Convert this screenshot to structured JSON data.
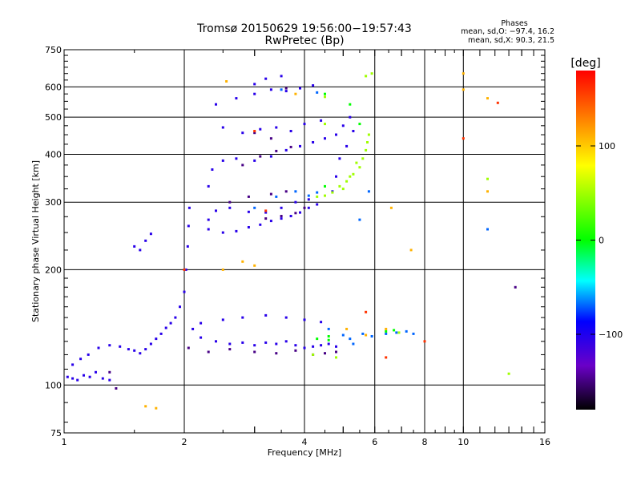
{
  "chart_data": {
    "type": "scatter",
    "title": "Tromsø 20150629 19:56:00−19:57:43",
    "subtitle": "RwPretec (Bp)",
    "xlabel": "Frequency [MHz]",
    "ylabel": "Stationary phase Virtual Height [km]",
    "x_scale": "log",
    "y_scale": "log",
    "xlim": [
      1,
      16
    ],
    "ylim": [
      75,
      750
    ],
    "x_ticks": [
      "1",
      "2",
      "4",
      "6",
      "8",
      "10",
      "16"
    ],
    "y_ticks": [
      "75",
      "100",
      "200",
      "300",
      "400",
      "500",
      "600",
      "750"
    ],
    "grid": true,
    "stats": {
      "header": "Phases",
      "line_o": "mean, sd,O: −97.4, 16.2",
      "line_x": "mean, sd,X:  90.3, 21.5"
    },
    "colorbar": {
      "label": "[deg]",
      "range": [
        -180,
        180
      ],
      "ticks": [
        "100",
        "0",
        "−100"
      ],
      "colors": [
        "#ff0000",
        "#ff7f00",
        "#ffff00",
        "#00ff00",
        "#00ffff",
        "#0000ff",
        "#6a00c8",
        "#000000"
      ]
    },
    "series": [
      {
        "phase": -110,
        "points": [
          [
            1.02,
            105
          ],
          [
            1.05,
            104
          ],
          [
            1.08,
            103
          ],
          [
            1.12,
            106
          ],
          [
            1.16,
            105
          ],
          [
            1.2,
            108
          ],
          [
            1.25,
            104
          ],
          [
            1.3,
            103
          ],
          [
            1.05,
            113
          ],
          [
            1.1,
            117
          ],
          [
            1.15,
            120
          ],
          [
            1.22,
            125
          ],
          [
            1.3,
            127
          ],
          [
            1.38,
            126
          ],
          [
            1.45,
            124
          ],
          [
            1.5,
            123
          ],
          [
            1.55,
            121
          ],
          [
            1.6,
            124
          ],
          [
            1.65,
            128
          ],
          [
            1.7,
            132
          ],
          [
            1.75,
            136
          ],
          [
            1.8,
            141
          ],
          [
            1.85,
            145
          ],
          [
            1.9,
            150
          ],
          [
            1.95,
            160
          ],
          [
            2.0,
            175
          ],
          [
            2.02,
            200
          ],
          [
            2.04,
            230
          ],
          [
            2.05,
            260
          ],
          [
            2.06,
            290
          ],
          [
            2.1,
            140
          ],
          [
            2.2,
            133
          ],
          [
            2.4,
            130
          ],
          [
            2.6,
            128
          ],
          [
            2.8,
            129
          ],
          [
            3.0,
            127
          ],
          [
            3.2,
            129
          ],
          [
            3.4,
            128
          ],
          [
            3.6,
            130
          ],
          [
            3.8,
            127
          ],
          [
            4.0,
            125
          ],
          [
            4.2,
            126
          ],
          [
            4.4,
            127
          ],
          [
            4.6,
            128
          ],
          [
            4.8,
            126
          ],
          [
            2.2,
            145
          ],
          [
            2.5,
            148
          ],
          [
            2.8,
            150
          ],
          [
            3.2,
            152
          ],
          [
            3.6,
            150
          ],
          [
            4.0,
            148
          ],
          [
            4.4,
            146
          ],
          [
            2.3,
            255
          ],
          [
            2.5,
            250
          ],
          [
            2.7,
            252
          ],
          [
            2.9,
            258
          ],
          [
            3.1,
            262
          ],
          [
            3.3,
            268
          ],
          [
            3.5,
            272
          ],
          [
            3.7,
            276
          ],
          [
            3.9,
            282
          ],
          [
            4.1,
            290
          ],
          [
            4.3,
            296
          ],
          [
            2.3,
            270
          ],
          [
            2.4,
            285
          ],
          [
            2.6,
            290
          ],
          [
            2.9,
            283
          ],
          [
            3.2,
            282
          ],
          [
            3.5,
            290
          ],
          [
            3.8,
            300
          ],
          [
            4.1,
            305
          ],
          [
            2.3,
            330
          ],
          [
            2.35,
            365
          ],
          [
            2.5,
            385
          ],
          [
            2.7,
            390
          ],
          [
            3.0,
            385
          ],
          [
            3.3,
            395
          ],
          [
            3.6,
            410
          ],
          [
            3.9,
            420
          ],
          [
            4.2,
            430
          ],
          [
            4.5,
            440
          ],
          [
            4.8,
            450
          ],
          [
            2.4,
            540
          ],
          [
            2.7,
            560
          ],
          [
            3.0,
            575
          ],
          [
            3.3,
            590
          ],
          [
            3.6,
            585
          ],
          [
            3.9,
            595
          ],
          [
            4.2,
            605
          ],
          [
            3.2,
            630
          ],
          [
            3.5,
            640
          ],
          [
            3.0,
            610
          ],
          [
            2.5,
            470
          ],
          [
            2.8,
            455
          ],
          [
            3.1,
            465
          ],
          [
            3.4,
            470
          ],
          [
            3.7,
            460
          ],
          [
            4.0,
            480
          ],
          [
            4.4,
            490
          ],
          [
            5.0,
            475
          ],
          [
            5.2,
            500
          ],
          [
            5.3,
            460
          ],
          [
            5.1,
            420
          ],
          [
            4.9,
            390
          ],
          [
            4.8,
            350
          ],
          [
            4.7,
            320
          ],
          [
            1.5,
            230
          ],
          [
            1.55,
            225
          ],
          [
            1.6,
            238
          ],
          [
            1.65,
            248
          ]
        ]
      },
      {
        "phase": -150,
        "points": [
          [
            2.05,
            125
          ],
          [
            2.3,
            122
          ],
          [
            2.6,
            124
          ],
          [
            3.0,
            122
          ],
          [
            3.4,
            121
          ],
          [
            3.8,
            123
          ],
          [
            3.2,
            272
          ],
          [
            3.5,
            276
          ],
          [
            3.8,
            281
          ],
          [
            4.0,
            290
          ],
          [
            3.1,
            395
          ],
          [
            3.4,
            408
          ],
          [
            3.7,
            418
          ],
          [
            2.6,
            300
          ],
          [
            2.9,
            310
          ],
          [
            3.3,
            315
          ],
          [
            3.6,
            320
          ],
          [
            3.0,
            455
          ],
          [
            3.3,
            440
          ],
          [
            4.2,
            120
          ],
          [
            4.5,
            121
          ],
          [
            4.8,
            122
          ],
          [
            1.3,
            108
          ],
          [
            1.35,
            98
          ],
          [
            2.8,
            375
          ],
          [
            3.6,
            595
          ],
          [
            13.5,
            180
          ]
        ]
      },
      {
        "phase": -75,
        "points": [
          [
            3.0,
            290
          ],
          [
            3.4,
            310
          ],
          [
            3.8,
            320
          ],
          [
            4.1,
            312
          ],
          [
            4.3,
            318
          ],
          [
            5.0,
            135
          ],
          [
            5.2,
            132
          ],
          [
            5.6,
            136
          ],
          [
            5.9,
            134
          ],
          [
            6.4,
            136
          ],
          [
            6.8,
            137
          ],
          [
            7.2,
            138
          ],
          [
            7.5,
            136
          ],
          [
            5.3,
            128
          ],
          [
            4.6,
            140
          ],
          [
            3.5,
            590
          ],
          [
            4.3,
            580
          ],
          [
            5.5,
            270
          ],
          [
            5.8,
            320
          ],
          [
            11.5,
            255
          ]
        ]
      },
      {
        "phase": 0,
        "points": [
          [
            4.3,
            132
          ],
          [
            4.6,
            131
          ],
          [
            4.5,
            575
          ],
          [
            5.2,
            540
          ],
          [
            5.5,
            480
          ],
          [
            6.4,
            138
          ],
          [
            6.7,
            139
          ],
          [
            4.5,
            330
          ],
          [
            4.6,
            134
          ]
        ]
      },
      {
        "phase": 50,
        "points": [
          [
            4.3,
            310
          ],
          [
            4.5,
            312
          ],
          [
            4.7,
            318
          ],
          [
            4.9,
            330
          ],
          [
            5.1,
            340
          ],
          [
            5.3,
            355
          ],
          [
            5.5,
            370
          ],
          [
            5.6,
            390
          ],
          [
            5.7,
            410
          ],
          [
            5.75,
            430
          ],
          [
            5.8,
            450
          ],
          [
            4.2,
            120
          ],
          [
            4.8,
            118
          ],
          [
            5.7,
            640
          ],
          [
            5.9,
            650
          ],
          [
            6.9,
            137
          ],
          [
            4.5,
            480
          ],
          [
            4.5,
            565
          ],
          [
            5.0,
            325
          ],
          [
            5.2,
            350
          ],
          [
            5.4,
            380
          ],
          [
            11.5,
            345
          ],
          [
            13.0,
            107
          ]
        ]
      },
      {
        "phase": 110,
        "points": [
          [
            2.5,
            200
          ],
          [
            2.8,
            210
          ],
          [
            3.0,
            205
          ],
          [
            3.8,
            575
          ],
          [
            2.55,
            620
          ],
          [
            10.0,
            650
          ],
          [
            10.0,
            590
          ],
          [
            11.5,
            560
          ],
          [
            11.5,
            320
          ],
          [
            5.1,
            140
          ],
          [
            5.7,
            135
          ],
          [
            6.4,
            140
          ],
          [
            6.6,
            290
          ],
          [
            7.4,
            225
          ],
          [
            1.6,
            88
          ],
          [
            1.7,
            87
          ]
        ]
      },
      {
        "phase": 160,
        "points": [
          [
            3.2,
            285
          ],
          [
            3.0,
            460
          ],
          [
            5.7,
            155
          ],
          [
            6.4,
            118
          ],
          [
            8.0,
            130
          ],
          [
            10.0,
            440
          ],
          [
            12.2,
            545
          ],
          [
            2.0,
            200
          ]
        ]
      }
    ]
  }
}
